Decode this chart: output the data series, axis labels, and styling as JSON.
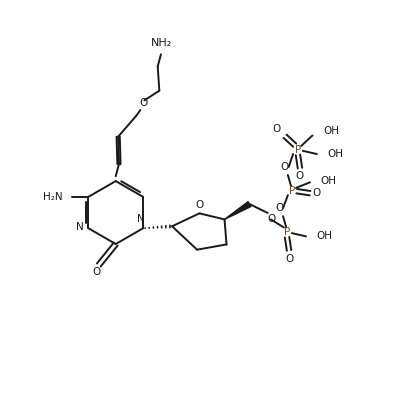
{
  "bg_color": "#ffffff",
  "line_color": "#1a1a1a",
  "p_color": "#8B4513",
  "lw": 1.4,
  "figsize": [
    4.05,
    4.13
  ],
  "dpi": 100,
  "xlim": [
    0,
    10
  ],
  "ylim": [
    0,
    10.2
  ]
}
